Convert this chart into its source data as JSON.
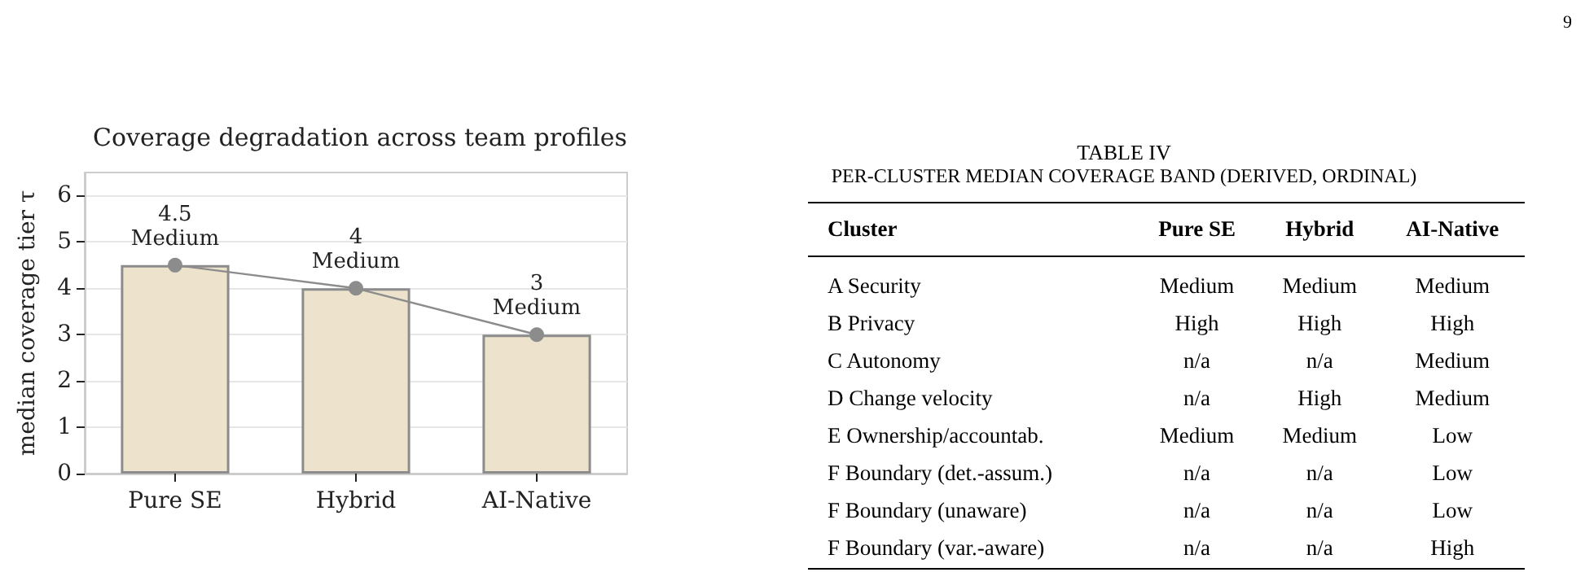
{
  "chart_data": [
    {
      "type": "bar",
      "title": "Coverage degradation across team profiles",
      "ylabel": "median coverage tier τ",
      "categories": [
        "Pure SE",
        "Hybrid",
        "AI-Native"
      ],
      "series": [
        {
          "type": "bar",
          "color": "#ede2cc",
          "values": [
            4.5,
            4,
            3
          ]
        },
        {
          "type": "line",
          "color": "#8c8c8c",
          "values": [
            4.5,
            4,
            3
          ],
          "value_labels": [
            "4.5\nMedium",
            "4\nMedium",
            "3\nMedium"
          ]
        }
      ],
      "ylim": [
        0,
        6.5
      ],
      "yticks": [
        0,
        1,
        2,
        3,
        4,
        5,
        6
      ],
      "grid": "y",
      "marker": "circle"
    },
    {
      "type": "other",
      "title": "TABLE IV",
      "subtitle": "PER-CLUSTER MEDIAN COVERAGE BAND (DERIVED, ORDINAL)",
      "ylabel": "Cluster",
      "categories": [
        "Pure SE",
        "Hybrid",
        "AI-Native"
      ],
      "y_categories": [
        "A Security",
        "B Privacy",
        "C Autonomy",
        "D Change velocity",
        "E Ownership/accountab.",
        "F Boundary (det.-assum.)",
        "F Boundary (unaware)",
        "F Boundary (var.-aware)"
      ],
      "cell_labels": [
        [
          "Medium",
          "Medium",
          "Medium"
        ],
        [
          "High",
          "High",
          "High"
        ],
        [
          "n/a",
          "n/a",
          "Medium"
        ],
        [
          "n/a",
          "High",
          "Medium"
        ],
        [
          "Medium",
          "Medium",
          "Low"
        ],
        [
          "n/a",
          "n/a",
          "Low"
        ],
        [
          "n/a",
          "n/a",
          "Low"
        ],
        [
          "n/a",
          "n/a",
          "High"
        ]
      ],
      "annotations": [
        "9"
      ]
    }
  ]
}
